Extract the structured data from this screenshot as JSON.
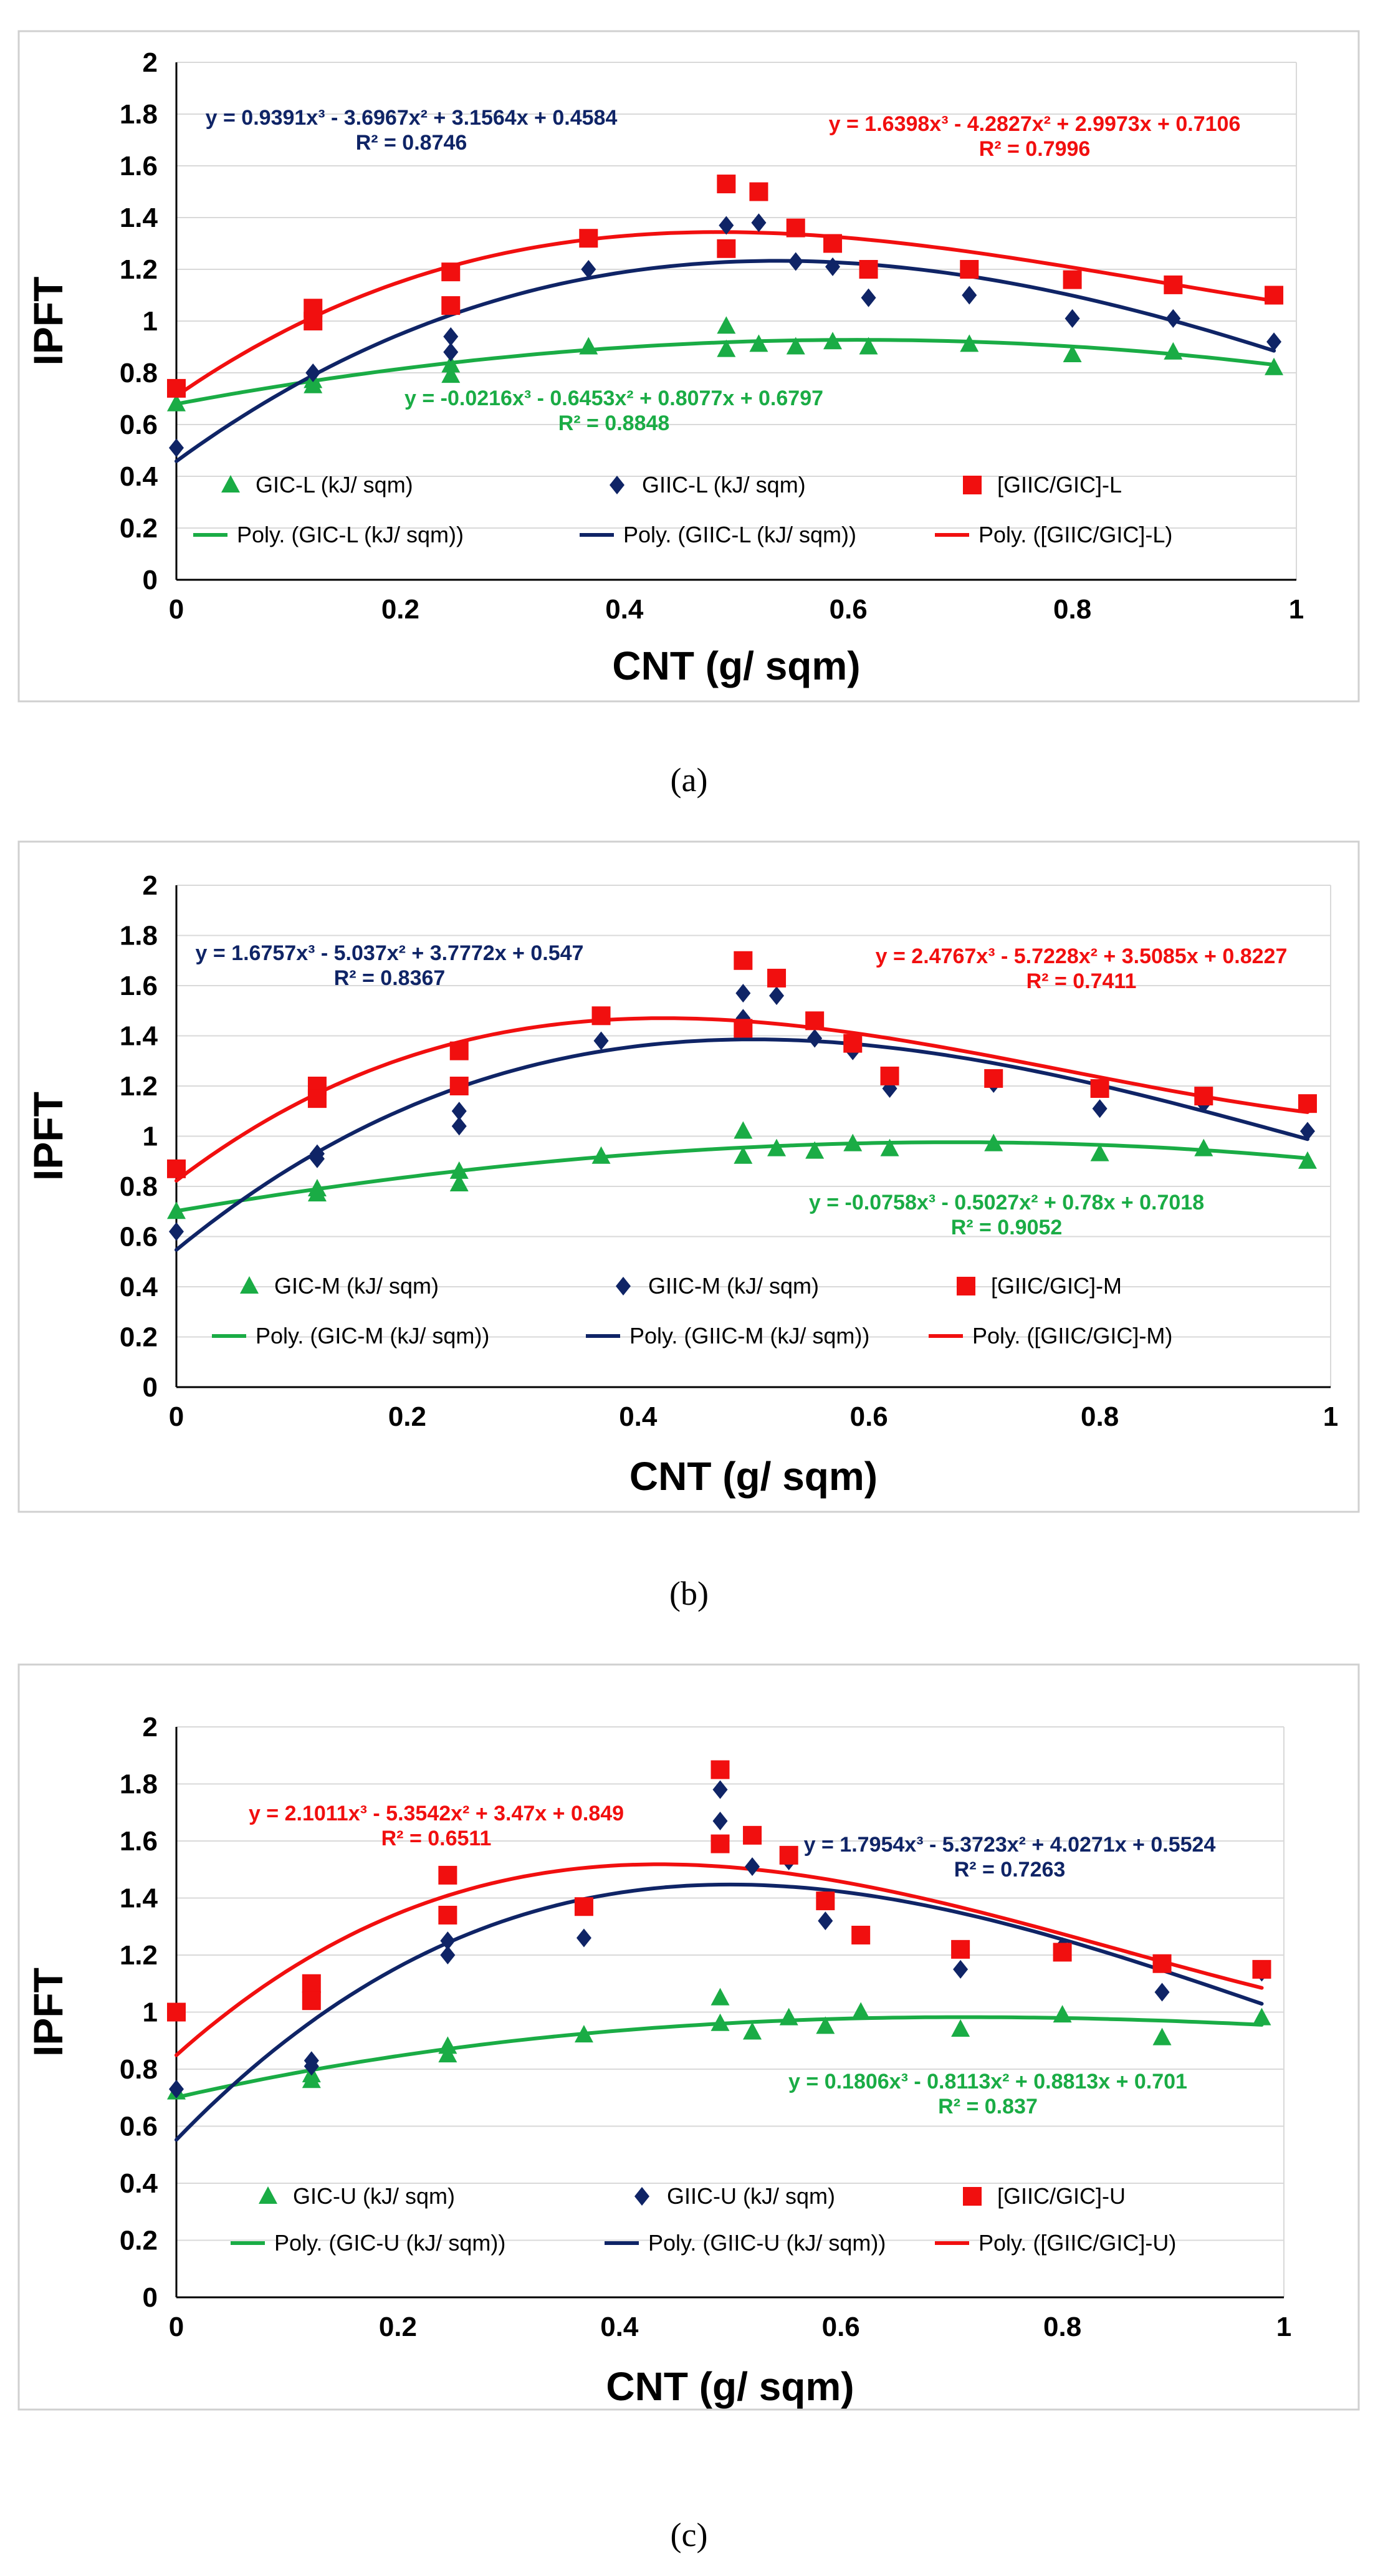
{
  "colors": {
    "gic": "#1aac45",
    "giic": "#0f2466",
    "ratio": "#f10f0f",
    "grid": "#d9d9d9",
    "axis": "#000000",
    "frame": "#d0d0d0"
  },
  "chart_data": [
    {
      "type": "scatter",
      "caption": "(a)",
      "xlabel": "CNT (g/ sqm)",
      "ylabel": "IPFT",
      "xlim": [
        0,
        1
      ],
      "ylim": [
        0,
        2
      ],
      "xticks": [
        "0",
        "0.2",
        "0.4",
        "0.6",
        "0.8",
        "1"
      ],
      "yticks": [
        "0",
        "0.2",
        "0.4",
        "0.6",
        "0.8",
        "1",
        "1.2",
        "1.4",
        "1.6",
        "1.8",
        "2"
      ],
      "grid": "horizontal",
      "series": [
        {
          "name": "GIC-L (kJ/ sqm)",
          "color": "#1aac45",
          "marker": "triangle",
          "x": [
            0,
            0.122,
            0.122,
            0.245,
            0.245,
            0.368,
            0.491,
            0.491,
            0.52,
            0.553,
            0.586,
            0.618,
            0.708,
            0.8,
            0.89,
            0.98
          ],
          "y": [
            0.68,
            0.75,
            0.77,
            0.79,
            0.83,
            0.9,
            0.98,
            0.89,
            0.91,
            0.9,
            0.92,
            0.9,
            0.91,
            0.87,
            0.88,
            0.82
          ]
        },
        {
          "name": "GIIC-L (kJ/ sqm)",
          "color": "#0f2466",
          "marker": "diamond",
          "x": [
            0,
            0.122,
            0.245,
            0.245,
            0.368,
            0.491,
            0.52,
            0.553,
            0.586,
            0.618,
            0.708,
            0.8,
            0.89,
            0.98
          ],
          "y": [
            0.51,
            0.8,
            0.94,
            0.88,
            1.2,
            1.37,
            1.38,
            1.23,
            1.21,
            1.09,
            1.1,
            1.01,
            1.01,
            0.92
          ]
        },
        {
          "name": "[GIIC/GIC]-L",
          "color": "#f10f0f",
          "marker": "square",
          "x": [
            0,
            0.122,
            0.122,
            0.245,
            0.245,
            0.368,
            0.491,
            0.491,
            0.52,
            0.553,
            0.586,
            0.618,
            0.708,
            0.8,
            0.89,
            0.98
          ],
          "y": [
            0.74,
            1.05,
            1.0,
            1.19,
            1.06,
            1.32,
            1.53,
            1.28,
            1.5,
            1.36,
            1.3,
            1.2,
            1.2,
            1.16,
            1.14,
            1.1
          ]
        }
      ],
      "trendlines": [
        {
          "name": "Poly. (GIC-L (kJ/ sqm))",
          "color": "#1aac45",
          "coef": [
            -0.0216,
            -0.6453,
            0.8077,
            0.6797
          ],
          "equation": "y = -0.0216x³ - 0.6453x² + 0.8077x + 0.6797",
          "r2": "R² = 0.8848"
        },
        {
          "name": "Poly. (GIIC-L (kJ/ sqm))",
          "color": "#0f2466",
          "coef": [
            0.9391,
            -3.6967,
            3.1564,
            0.4584
          ],
          "equation": "y = 0.9391x³ - 3.6967x² + 3.1564x + 0.4584",
          "r2": "R² = 0.8746"
        },
        {
          "name": "Poly. ([GIIC/GIC]-L)",
          "color": "#f10f0f",
          "coef": [
            1.6398,
            -4.2827,
            2.9973,
            0.7106
          ],
          "equation": "y = 1.6398x³ - 4.2827x² + 2.9973x + 0.7106",
          "r2": "R² = 0.7996"
        }
      ]
    },
    {
      "type": "scatter",
      "caption": "(b)",
      "xlabel": "CNT (g/ sqm)",
      "ylabel": "IPFT",
      "xlim": [
        0,
        1
      ],
      "ylim": [
        0,
        2
      ],
      "xticks": [
        "0",
        "0.2",
        "0.4",
        "0.6",
        "0.8",
        "1"
      ],
      "yticks": [
        "0",
        "0.2",
        "0.4",
        "0.6",
        "0.8",
        "1",
        "1.2",
        "1.4",
        "1.6",
        "1.8",
        "2"
      ],
      "grid": "horizontal",
      "series": [
        {
          "name": "GIC-M (kJ/ sqm)",
          "color": "#1aac45",
          "marker": "triangle",
          "x": [
            0,
            0.122,
            0.122,
            0.245,
            0.245,
            0.368,
            0.491,
            0.491,
            0.52,
            0.553,
            0.586,
            0.618,
            0.708,
            0.8,
            0.89,
            0.98
          ],
          "y": [
            0.7,
            0.77,
            0.79,
            0.81,
            0.86,
            0.92,
            1.02,
            0.92,
            0.95,
            0.94,
            0.97,
            0.95,
            0.97,
            0.93,
            0.95,
            0.9
          ]
        },
        {
          "name": "GIIC-M (kJ/ sqm)",
          "color": "#0f2466",
          "marker": "diamond",
          "x": [
            0,
            0.122,
            0.122,
            0.245,
            0.245,
            0.368,
            0.491,
            0.491,
            0.52,
            0.553,
            0.586,
            0.618,
            0.708,
            0.8,
            0.89,
            0.98
          ],
          "y": [
            0.62,
            0.93,
            0.91,
            1.1,
            1.04,
            1.38,
            1.57,
            1.47,
            1.56,
            1.39,
            1.34,
            1.19,
            1.21,
            1.11,
            1.13,
            1.02
          ]
        },
        {
          "name": "[GIIC/GIC]-M",
          "color": "#f10f0f",
          "marker": "square",
          "x": [
            0,
            0.122,
            0.122,
            0.245,
            0.245,
            0.368,
            0.491,
            0.491,
            0.52,
            0.553,
            0.586,
            0.618,
            0.708,
            0.8,
            0.89,
            0.98
          ],
          "y": [
            0.87,
            1.2,
            1.15,
            1.34,
            1.2,
            1.48,
            1.7,
            1.43,
            1.63,
            1.46,
            1.37,
            1.24,
            1.23,
            1.19,
            1.16,
            1.13
          ]
        }
      ],
      "trendlines": [
        {
          "name": "Poly. (GIC-M (kJ/ sqm))",
          "color": "#1aac45",
          "coef": [
            -0.0758,
            -0.5027,
            0.78,
            0.7018
          ],
          "equation": "y = -0.0758x³ - 0.5027x² + 0.78x + 0.7018",
          "r2": "R² = 0.9052"
        },
        {
          "name": "Poly. (GIIC-M (kJ/ sqm))",
          "color": "#0f2466",
          "coef": [
            1.6757,
            -5.037,
            3.7772,
            0.547
          ],
          "equation": "y = 1.6757x³ - 5.037x² + 3.7772x + 0.547",
          "r2": "R² = 0.8367"
        },
        {
          "name": "Poly. ([GIIC/GIC]-M)",
          "color": "#f10f0f",
          "coef": [
            2.4767,
            -5.7228,
            3.5085,
            0.8227
          ],
          "equation": "y = 2.4767x³ - 5.7228x² + 3.5085x + 0.8227",
          "r2": "R² = 0.7411"
        }
      ]
    },
    {
      "type": "scatter",
      "caption": "(c)",
      "xlabel": "CNT (g/ sqm)",
      "ylabel": "IPFT",
      "xlim": [
        0,
        1
      ],
      "ylim": [
        0,
        2
      ],
      "xticks": [
        "0",
        "0.2",
        "0.4",
        "0.6",
        "0.8",
        "1"
      ],
      "yticks": [
        "0",
        "0.2",
        "0.4",
        "0.6",
        "0.8",
        "1",
        "1.2",
        "1.4",
        "1.6",
        "1.8",
        "2"
      ],
      "grid": "horizontal",
      "series": [
        {
          "name": "GIC-U (kJ/ sqm)",
          "color": "#1aac45",
          "marker": "triangle",
          "x": [
            0,
            0.122,
            0.122,
            0.245,
            0.245,
            0.368,
            0.491,
            0.491,
            0.52,
            0.553,
            0.586,
            0.618,
            0.708,
            0.8,
            0.89,
            0.98
          ],
          "y": [
            0.72,
            0.76,
            0.78,
            0.85,
            0.88,
            0.92,
            1.05,
            0.96,
            0.93,
            0.98,
            0.95,
            1.0,
            0.94,
            0.99,
            0.91,
            0.98
          ]
        },
        {
          "name": "GIIC-U (kJ/ sqm)",
          "color": "#0f2466",
          "marker": "diamond",
          "x": [
            0,
            0.122,
            0.122,
            0.245,
            0.245,
            0.368,
            0.491,
            0.491,
            0.52,
            0.553,
            0.586,
            0.618,
            0.708,
            0.8,
            0.89,
            0.98
          ],
          "y": [
            0.73,
            0.83,
            0.81,
            1.25,
            1.2,
            1.26,
            1.78,
            1.67,
            1.51,
            1.53,
            1.32,
            1.27,
            1.15,
            1.23,
            1.07,
            1.14
          ]
        },
        {
          "name": "[GIIC/GIC]-U",
          "color": "#f10f0f",
          "marker": "square",
          "x": [
            0,
            0.122,
            0.122,
            0.245,
            0.245,
            0.368,
            0.491,
            0.491,
            0.52,
            0.553,
            0.586,
            0.618,
            0.708,
            0.8,
            0.89,
            0.98
          ],
          "y": [
            1.0,
            1.1,
            1.04,
            1.48,
            1.34,
            1.37,
            1.85,
            1.59,
            1.62,
            1.55,
            1.39,
            1.27,
            1.22,
            1.21,
            1.17,
            1.15
          ]
        }
      ],
      "trendlines": [
        {
          "name": "Poly. (GIC-U (kJ/ sqm))",
          "color": "#1aac45",
          "coef": [
            0.1806,
            -0.8113,
            0.8813,
            0.701
          ],
          "equation": "y = 0.1806x³ - 0.8113x² + 0.8813x + 0.701",
          "r2": "R² = 0.837"
        },
        {
          "name": "Poly. (GIIC-U (kJ/ sqm))",
          "color": "#0f2466",
          "coef": [
            1.7954,
            -5.3723,
            4.0271,
            0.5524
          ],
          "equation": "y = 1.7954x³ - 5.3723x² + 4.0271x + 0.5524",
          "r2": "R² = 0.7263"
        },
        {
          "name": "Poly. ([GIIC/GIC]-U)",
          "color": "#f10f0f",
          "coef": [
            2.1011,
            -5.3542,
            3.47,
            0.849
          ],
          "equation": "y = 2.1011x³ - 5.3542x² + 3.47x + 0.849",
          "r2": "R² = 0.6511"
        }
      ]
    }
  ]
}
